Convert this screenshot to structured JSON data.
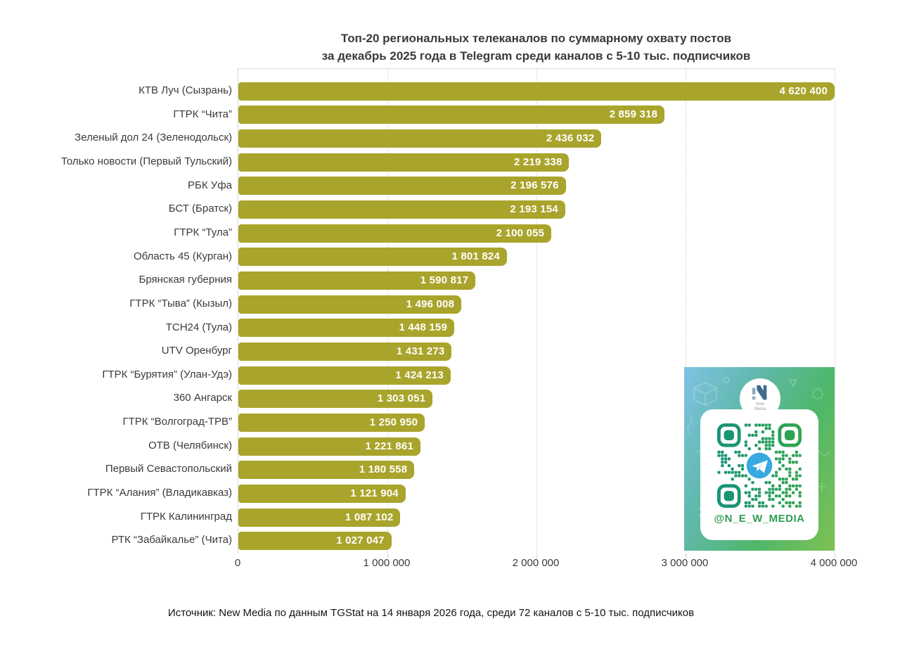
{
  "title": {
    "line1": "Топ-20 региональных телеканалов по суммарному охвату постов",
    "line2": "за декабрь 2025 года в Telegram среди каналов с 5-10 тыс. подписчиков"
  },
  "source_note": "Источник: New Media по данным TGStat на 14 января 2026 года, среди 72 каналов с 5-10 тыс. подписчиков",
  "promo": {
    "handle": "@N_E_W_MEDIA",
    "logo_line1": "New",
    "logo_line2": "Media",
    "accent_green": "#2e9e52",
    "telegram_blue": "#35a9e0"
  },
  "chart_data": {
    "type": "bar",
    "orientation": "horizontal",
    "title": "Топ-20 региональных телеканалов по суммарному охвату постов за декабрь 2025 года в Telegram среди каналов с 5-10 тыс. подписчиков",
    "categories": [
      "КТВ Луч (Сызрань)",
      "ГТРК “Чита”",
      "Зеленый дол 24 (Зеленодольск)",
      "Только новости (Первый Тульский)",
      "РБК Уфа",
      "БСТ (Братск)",
      "ГТРК “Тула”",
      "Область 45 (Курган)",
      "Брянская губерния",
      "ГТРК “Тыва” (Кызыл)",
      "ТСН24 (Тула)",
      "UTV Оренбург",
      "ГТРК “Бурятия” (Улан-Удэ)",
      "360 Ангарск",
      "ГТРК “Волгоград-ТРВ”",
      "ОТВ (Челябинск)",
      "Первый Севастопольский",
      "ГТРК “Алания” (Владикавказ)",
      "ГТРК Калининград",
      "РТК “Забайкалье” (Чита)"
    ],
    "values": [
      4620400,
      2859318,
      2436032,
      2219338,
      2196576,
      2193154,
      2100055,
      1801824,
      1590817,
      1496008,
      1448159,
      1431273,
      1424213,
      1303051,
      1250950,
      1221861,
      1180558,
      1121904,
      1087102,
      1027047
    ],
    "value_labels": [
      "4 620 400",
      "2 859 318",
      "2 436 032",
      "2 219 338",
      "2 196 576",
      "2 193 154",
      "2 100 055",
      "1 801 824",
      "1 590 817",
      "1 496 008",
      "1 448 159",
      "1 431 273",
      "1 424 213",
      "1 303 051",
      "1 250 950",
      "1 221 861",
      "1 180 558",
      "1 121 904",
      "1 087 102",
      "1 027 047"
    ],
    "xlabel": "",
    "ylabel": "",
    "xlim": [
      0,
      4000000
    ],
    "x_ticks": [
      0,
      1000000,
      2000000,
      3000000,
      4000000
    ],
    "x_tick_labels": [
      "0",
      "1 000 000",
      "2 000 000",
      "3 000 000",
      "4 000 000"
    ],
    "bar_color": "#a9a42b",
    "grid": "vertical dotted",
    "legend": "none",
    "note": "first bar clipped at axis maximum 4 000 000"
  }
}
